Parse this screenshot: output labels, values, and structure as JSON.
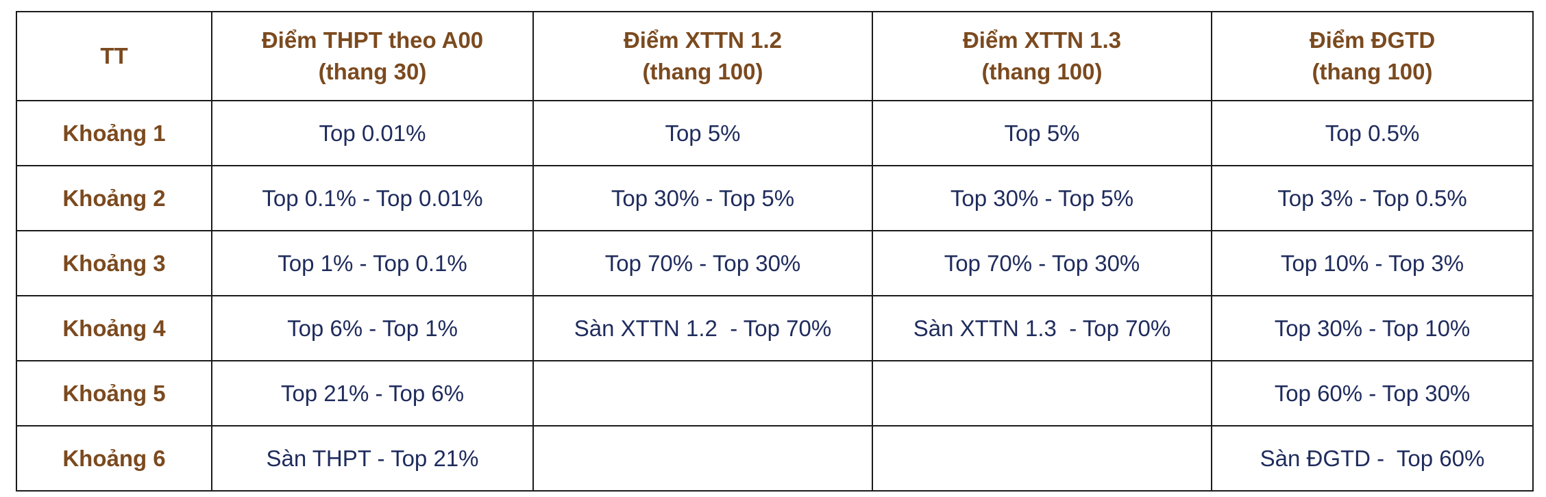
{
  "table": {
    "header": [
      [
        "TT"
      ],
      [
        "Điểm THPT theo A00",
        "(thang 30)"
      ],
      [
        "Điểm XTTN 1.2",
        "(thang 100)"
      ],
      [
        "Điểm XTTN 1.3",
        "(thang 100)"
      ],
      [
        "Điểm ĐGTD",
        "(thang 100)"
      ]
    ],
    "rows": [
      [
        "Khoảng 1",
        "Top 0.01%",
        "Top 5%",
        "Top 5%",
        "Top 0.5%"
      ],
      [
        "Khoảng 2",
        "Top 0.1% - Top 0.01%",
        "Top 30% - Top 5%",
        "Top 30% - Top 5%",
        "Top 3% - Top 0.5%"
      ],
      [
        "Khoảng 3",
        "Top 1% - Top 0.1%",
        "Top 70% - Top 30%",
        "Top 70% - Top 30%",
        "Top 10% - Top 3%"
      ],
      [
        "Khoảng 4",
        "Top 6% - Top 1%",
        "Sàn XTTN 1.2  - Top 70%",
        "Sàn XTTN 1.3  - Top 70%",
        "Top 30% - Top 10%"
      ],
      [
        "Khoảng 5",
        "Top 21% - Top 6%",
        null,
        null,
        "Top 60% - Top 30%"
      ],
      [
        "Khoảng 6",
        "Sàn THPT - Top 21%",
        null,
        null,
        "Sàn ĐGTD -  Top 60%"
      ]
    ]
  }
}
